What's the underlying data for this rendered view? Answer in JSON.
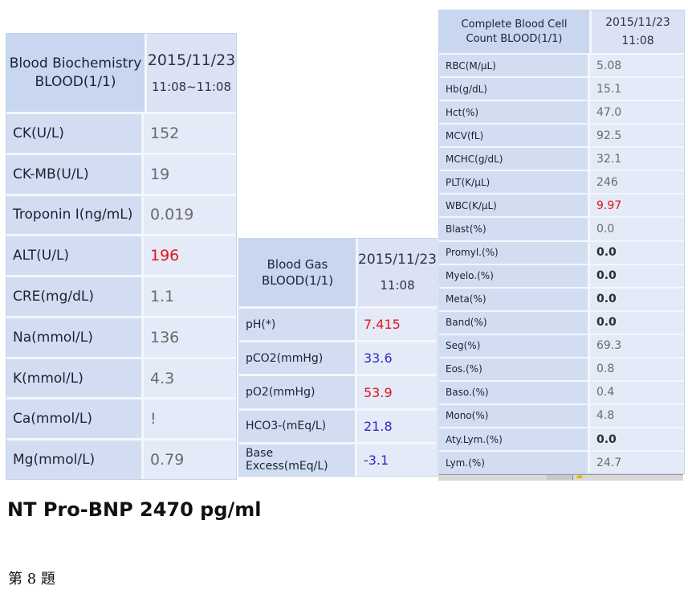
{
  "biochemistry": {
    "title_line1": "Blood Biochemistry",
    "title_line2": "BLOOD(1/1)",
    "date": "2015/11/23",
    "time": "11:08~11:08",
    "rows": [
      {
        "label": "CK(U/L)",
        "value": "152",
        "flag": "normal"
      },
      {
        "label": "CK-MB(U/L)",
        "value": "19",
        "flag": "normal"
      },
      {
        "label": "Troponin I(ng/mL)",
        "value": "0.019",
        "flag": "normal"
      },
      {
        "label": "ALT(U/L)",
        "value": "196",
        "flag": "high"
      },
      {
        "label": "CRE(mg/dL)",
        "value": "1.1",
        "flag": "normal"
      },
      {
        "label": "Na(mmol/L)",
        "value": "136",
        "flag": "normal"
      },
      {
        "label": "K(mmol/L)",
        "value": "4.3",
        "flag": "normal"
      },
      {
        "label": "Ca(mmol/L)",
        "value": "!",
        "flag": "normal"
      },
      {
        "label": "Mg(mmol/L)",
        "value": "0.79",
        "flag": "normal"
      }
    ]
  },
  "blood_gas": {
    "title": "Blood Gas BLOOD(1/1)",
    "date": "2015/11/23",
    "time": "11:08",
    "rows": [
      {
        "label": "pH(*)",
        "value": "7.415",
        "flag": "high"
      },
      {
        "label": "pCO2(mmHg)",
        "value": "33.6",
        "flag": "low"
      },
      {
        "label": "pO2(mmHg)",
        "value": "53.9",
        "flag": "high"
      },
      {
        "label": "HCO3-(mEq/L)",
        "value": "21.8",
        "flag": "low"
      },
      {
        "label": "Base Excess(mEq/L)",
        "value": "-3.1",
        "flag": "low"
      }
    ]
  },
  "cbc": {
    "title_line1": "Complete Blood Cell",
    "title_line2": "Count BLOOD(1/1)",
    "date": "2015/11/23",
    "time": "11:08",
    "rows": [
      {
        "label": "RBC(M/μL)",
        "value": "5.08",
        "flag": "normal"
      },
      {
        "label": "Hb(g/dL)",
        "value": "15.1",
        "flag": "normal"
      },
      {
        "label": "Hct(%)",
        "value": "47.0",
        "flag": "normal"
      },
      {
        "label": "MCV(fL)",
        "value": "92.5",
        "flag": "normal"
      },
      {
        "label": "MCHC(g/dL)",
        "value": "32.1",
        "flag": "normal"
      },
      {
        "label": "PLT(K/μL)",
        "value": "246",
        "flag": "normal"
      },
      {
        "label": "WBC(K/μL)",
        "value": "9.97",
        "flag": "high"
      },
      {
        "label": "Blast(%)",
        "value": "0.0",
        "flag": "normal"
      },
      {
        "label": "Promyl.(%)",
        "value": "0.0",
        "flag": "bold"
      },
      {
        "label": "Myelo.(%)",
        "value": "0.0",
        "flag": "bold"
      },
      {
        "label": "Meta(%)",
        "value": "0.0",
        "flag": "bold"
      },
      {
        "label": "Band(%)",
        "value": "0.0",
        "flag": "bold"
      },
      {
        "label": "Seg(%)",
        "value": "69.3",
        "flag": "normal"
      },
      {
        "label": "Eos.(%)",
        "value": "0.8",
        "flag": "normal"
      },
      {
        "label": "Baso.(%)",
        "value": "0.4",
        "flag": "normal"
      },
      {
        "label": "Mono(%)",
        "value": "4.8",
        "flag": "normal"
      },
      {
        "label": "Aty.Lym.(%)",
        "value": "0.0",
        "flag": "bold"
      },
      {
        "label": "Lym.(%)",
        "value": "24.7",
        "flag": "normal"
      }
    ]
  },
  "note": "NT Pro-BNP 2470 pg/ml",
  "question": "第 8 題",
  "colors": {
    "high": "#e3141a",
    "low": "#2a2fc0",
    "normal": "#6b6b6b"
  }
}
